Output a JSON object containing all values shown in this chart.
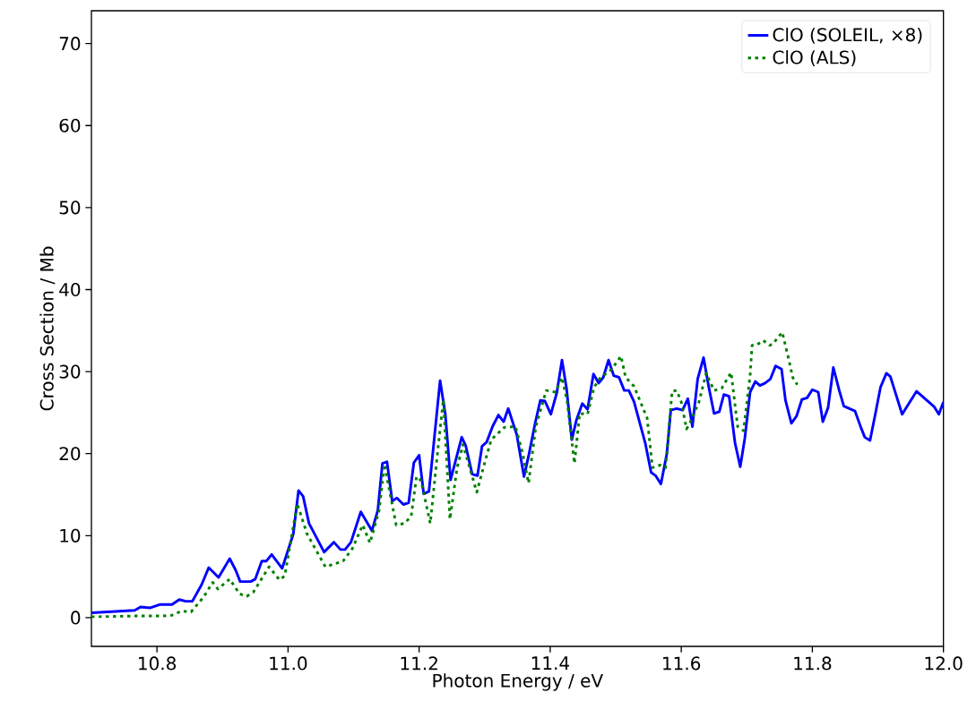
{
  "chart_data": {
    "type": "line",
    "xlabel": "Photon Energy / eV",
    "ylabel": "Cross Section / Mb",
    "xlim": [
      10.7,
      12.0
    ],
    "ylim": [
      -3.5,
      74
    ],
    "xticks": [
      {
        "value": 10.8,
        "label": "10.8"
      },
      {
        "value": 11.0,
        "label": "11.0"
      },
      {
        "value": 11.2,
        "label": "11.2"
      },
      {
        "value": 11.4,
        "label": "11.4"
      },
      {
        "value": 11.6,
        "label": "11.6"
      },
      {
        "value": 11.8,
        "label": "11.8"
      },
      {
        "value": 12.0,
        "label": "12.0"
      }
    ],
    "yticks": [
      0,
      10,
      20,
      30,
      40,
      50,
      60,
      70
    ],
    "legend": "top right",
    "grid": false,
    "marker": "none",
    "series": [
      {
        "name": "ClO (SOLEIL, ×8)",
        "color": "#0000ff",
        "line_style": "solid",
        "x": [
          10.7,
          10.766,
          10.775,
          10.79,
          10.804,
          10.823,
          10.834,
          10.844,
          10.854,
          10.868,
          10.879,
          10.894,
          10.911,
          10.92,
          10.927,
          10.943,
          10.95,
          10.96,
          10.967,
          10.975,
          10.991,
          11.008,
          11.016,
          11.023,
          11.032,
          11.055,
          11.07,
          11.08,
          11.087,
          11.096,
          11.111,
          11.128,
          11.137,
          11.144,
          11.151,
          11.159,
          11.166,
          11.176,
          11.184,
          11.192,
          11.2,
          11.207,
          11.215,
          11.232,
          11.24,
          11.248,
          11.265,
          11.271,
          11.281,
          11.289,
          11.296,
          11.303,
          11.312,
          11.321,
          11.329,
          11.336,
          11.349,
          11.36,
          11.367,
          11.377,
          11.385,
          11.392,
          11.401,
          11.41,
          11.418,
          11.425,
          11.433,
          11.44,
          11.449,
          11.457,
          11.466,
          11.474,
          11.481,
          11.489,
          11.497,
          11.505,
          11.513,
          11.52,
          11.528,
          11.545,
          11.554,
          11.561,
          11.569,
          11.578,
          11.584,
          11.593,
          11.602,
          11.61,
          11.617,
          11.625,
          11.634,
          11.642,
          11.65,
          11.658,
          11.665,
          11.673,
          11.682,
          11.69,
          11.697,
          11.705,
          11.713,
          11.72,
          11.728,
          11.736,
          11.744,
          11.753,
          11.759,
          11.768,
          11.776,
          11.784,
          11.792,
          11.8,
          11.809,
          11.816,
          11.824,
          11.832,
          11.841,
          11.848,
          11.865,
          11.874,
          11.88,
          11.888,
          11.896,
          11.904,
          11.913,
          11.919,
          11.937,
          11.959,
          11.986,
          11.993,
          12.0
        ],
        "values": [
          0.6,
          0.9,
          1.3,
          1.2,
          1.6,
          1.6,
          2.2,
          2.0,
          2.0,
          4.0,
          6.1,
          4.9,
          7.2,
          5.8,
          4.4,
          4.4,
          4.7,
          6.9,
          6.9,
          7.7,
          6.0,
          10.2,
          15.5,
          14.8,
          11.5,
          8.0,
          9.2,
          8.3,
          8.3,
          9.2,
          12.9,
          10.6,
          13.1,
          18.8,
          19.0,
          14.2,
          14.6,
          13.8,
          14.0,
          18.9,
          19.8,
          15.1,
          15.4,
          28.9,
          24.8,
          16.8,
          22.0,
          21.0,
          17.5,
          17.3,
          20.9,
          21.4,
          23.3,
          24.7,
          23.9,
          25.5,
          22.3,
          17.2,
          19.7,
          23.7,
          26.5,
          26.4,
          24.8,
          27.4,
          31.4,
          27.9,
          21.7,
          24.1,
          26.1,
          25.4,
          29.7,
          28.6,
          29.3,
          31.4,
          29.5,
          29.3,
          27.7,
          27.7,
          26.3,
          21.3,
          17.7,
          17.3,
          16.3,
          20.0,
          25.3,
          25.5,
          25.3,
          26.7,
          23.3,
          29.1,
          31.7,
          28.1,
          24.9,
          25.1,
          27.2,
          27.0,
          21.3,
          18.4,
          21.9,
          27.5,
          28.8,
          28.3,
          28.6,
          29.1,
          30.7,
          30.3,
          26.5,
          23.7,
          24.6,
          26.6,
          26.8,
          27.8,
          27.5,
          23.9,
          25.6,
          30.5,
          27.7,
          25.8,
          25.2,
          23.2,
          22.0,
          21.6,
          24.8,
          28.1,
          29.8,
          29.4,
          24.8,
          27.6,
          25.7,
          24.8,
          26.3
        ]
      },
      {
        "name": "ClO (ALS)",
        "color": "#008000",
        "line_style": "dotted",
        "x": [
          10.7,
          10.766,
          10.809,
          10.823,
          10.837,
          10.852,
          10.871,
          10.885,
          10.893,
          10.911,
          10.926,
          10.937,
          10.947,
          10.971,
          10.987,
          10.995,
          11.014,
          11.029,
          11.057,
          11.084,
          11.098,
          11.114,
          11.125,
          11.139,
          11.147,
          11.165,
          11.178,
          11.188,
          11.196,
          11.203,
          11.217,
          11.229,
          11.237,
          11.247,
          11.258,
          11.267,
          11.288,
          11.299,
          11.31,
          11.33,
          11.347,
          11.358,
          11.367,
          11.378,
          11.394,
          11.408,
          11.418,
          11.426,
          11.437,
          11.445,
          11.457,
          11.467,
          11.476,
          11.494,
          11.508,
          11.515,
          11.528,
          11.548,
          11.556,
          11.568,
          11.576,
          11.586,
          11.593,
          11.6,
          11.608,
          11.613,
          11.627,
          11.638,
          11.65,
          11.662,
          11.676,
          11.686,
          11.695,
          11.705,
          11.708,
          11.716,
          11.725,
          11.735,
          11.74,
          11.754,
          11.764,
          11.77,
          11.777
        ],
        "values": [
          0.1,
          0.2,
          0.2,
          0.3,
          0.8,
          0.7,
          2.5,
          4.3,
          3.5,
          4.7,
          2.9,
          2.6,
          3.1,
          6.2,
          4.6,
          5.1,
          13.9,
          10.2,
          6.2,
          6.9,
          8.4,
          11.3,
          9.1,
          13.1,
          18.7,
          11.3,
          11.5,
          12.4,
          17.2,
          16.7,
          11.5,
          20.8,
          26.6,
          12.0,
          18.3,
          21.1,
          15.3,
          18.6,
          21.7,
          23.2,
          23.3,
          20.0,
          16.4,
          23.3,
          27.7,
          27.5,
          29.3,
          26.3,
          18.8,
          24.9,
          24.8,
          28.1,
          29.2,
          30.3,
          31.9,
          29.3,
          28.2,
          24.3,
          18.3,
          18.6,
          18.3,
          27.6,
          27.7,
          26.3,
          23.0,
          23.7,
          26.3,
          29.8,
          27.7,
          28.0,
          29.9,
          23.3,
          22.8,
          29.5,
          33.2,
          33.3,
          33.8,
          33.2,
          33.4,
          34.8,
          31.5,
          29.3,
          28.4
        ]
      }
    ]
  }
}
